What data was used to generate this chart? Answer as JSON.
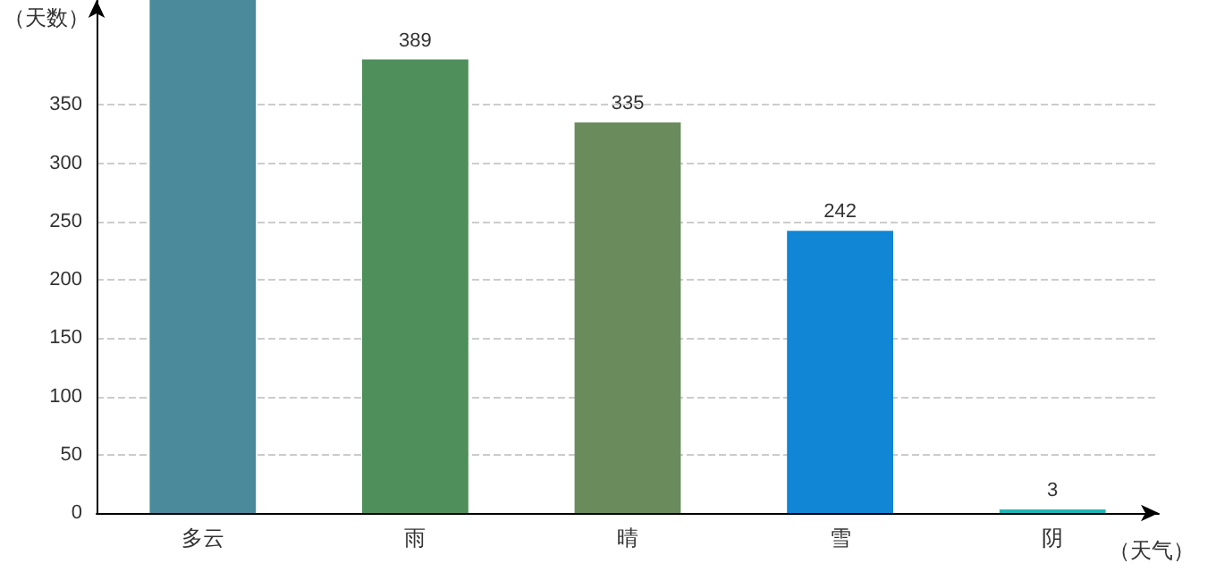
{
  "chart_data": {
    "type": "bar",
    "xlabel": "（天气）",
    "ylabel": "（天数）",
    "categories": [
      "多云",
      "雨",
      "晴",
      "雪",
      "阴"
    ],
    "values": [
      440,
      389,
      335,
      242,
      3
    ],
    "colors": [
      "#4a8a9a",
      "#4e8f5c",
      "#6a8c5c",
      "#1086d4",
      "#20b5b5"
    ],
    "value_labels": [
      null,
      "389",
      "335",
      "242",
      "3"
    ],
    "ylim": [
      0,
      440
    ],
    "yticks": [
      0,
      50,
      100,
      150,
      200,
      250,
      300,
      350
    ],
    "grid": "y"
  }
}
